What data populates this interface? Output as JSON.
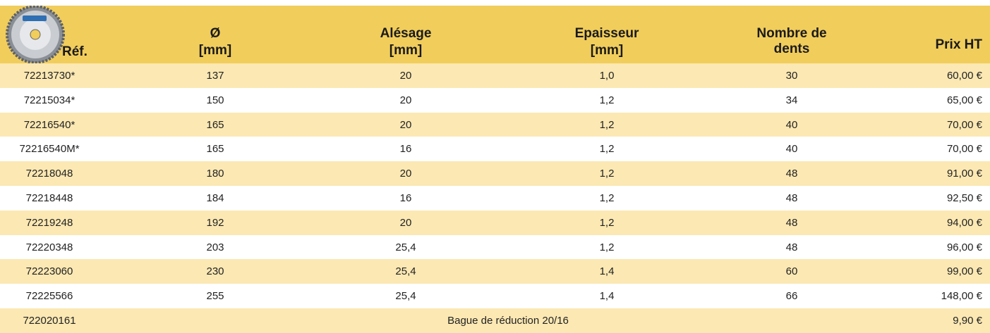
{
  "table": {
    "header": [
      [
        "Réf."
      ],
      [
        "Ø",
        "[mm]"
      ],
      [
        "Alésage",
        "[mm]"
      ],
      [
        "Epaisseur",
        "[mm]"
      ],
      [
        "Nombre de",
        "dents"
      ],
      [
        "Prix HT"
      ]
    ],
    "rows": [
      [
        "72213730*",
        "137",
        "20",
        "1,0",
        "30",
        "60,00 €"
      ],
      [
        "72215034*",
        "150",
        "20",
        "1,2",
        "34",
        "65,00 €"
      ],
      [
        "72216540*",
        "165",
        "20",
        "1,2",
        "40",
        "70,00 €"
      ],
      [
        "72216540M*",
        "165",
        "16",
        "1,2",
        "40",
        "70,00 €"
      ],
      [
        "72218048",
        "180",
        "20",
        "1,2",
        "48",
        "91,00 €"
      ],
      [
        "72218448",
        "184",
        "16",
        "1,2",
        "48",
        "92,50 €"
      ],
      [
        "72219248",
        "192",
        "20",
        "1,2",
        "48",
        "94,00 €"
      ],
      [
        "72220348",
        "203",
        "25,4",
        "1,2",
        "48",
        "96,00 €"
      ],
      [
        "72223060",
        "230",
        "25,4",
        "1,4",
        "60",
        "99,00 €"
      ],
      [
        "72225566",
        "255",
        "25,4",
        "1,4",
        "66",
        "148,00 €"
      ],
      [
        "722020161",
        "Bague de réduction 20/16",
        "9,90 €"
      ]
    ]
  }
}
